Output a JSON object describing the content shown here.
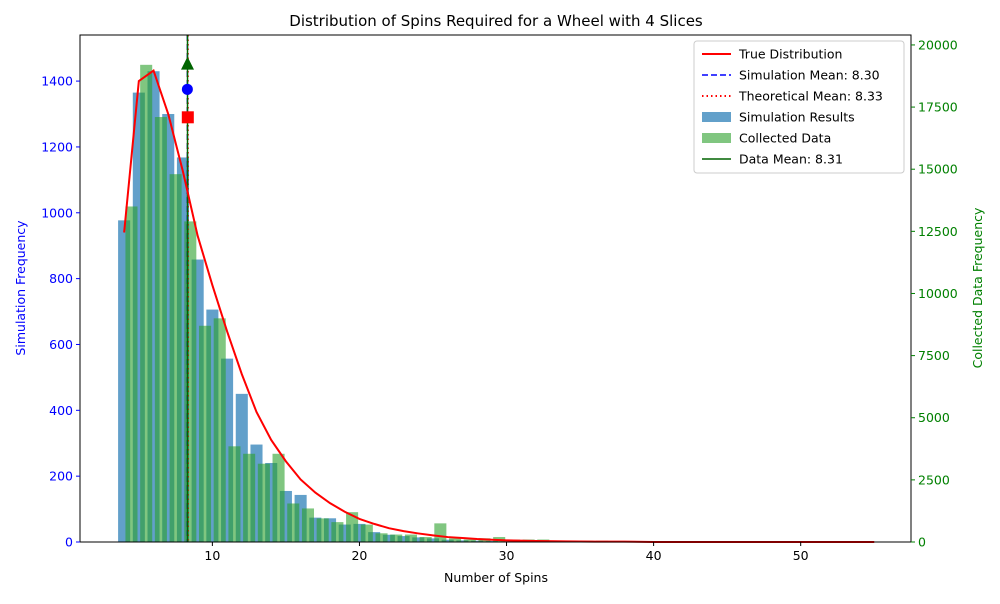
{
  "chart_data": {
    "type": "bar",
    "title": "Distribution of Spins Required for a Wheel with 4 Slices",
    "xlabel": "Number of Spins",
    "ylabel_left": "Simulation Frequency",
    "ylabel_right": "Collected Data Frequency",
    "xlim": [
      1,
      57.5
    ],
    "ylim_left": [
      0,
      1540
    ],
    "ylim_right": [
      0,
      20400
    ],
    "x_ticks": [
      10,
      20,
      30,
      40,
      50
    ],
    "y_ticks_left": [
      0,
      200,
      400,
      600,
      800,
      1000,
      1200,
      1400
    ],
    "y_ticks_right": [
      0,
      2500,
      5000,
      7500,
      10000,
      12500,
      15000,
      17500,
      20000
    ],
    "grid": false,
    "legend_position": "top-right",
    "colors": {
      "simulation": "#1f77b4",
      "collected": "#2ca02c",
      "true_dist": "#ff0000",
      "sim_mean": "#0000ff",
      "theo_mean": "#ff0000",
      "data_mean": "#006400",
      "left_axis": "#0000ff",
      "right_axis": "#008000"
    },
    "series": [
      {
        "name": "Simulation Results",
        "axis": "left",
        "x": [
          4,
          5,
          6,
          7,
          8,
          9,
          10,
          11,
          12,
          13,
          14,
          15,
          16,
          17,
          18,
          19,
          20,
          21,
          22,
          23,
          24,
          25,
          26,
          27,
          28,
          29,
          30,
          31,
          32,
          33
        ],
        "values": [
          977,
          1365,
          1430,
          1300,
          1168,
          858,
          706,
          557,
          450,
          296,
          240,
          155,
          143,
          74,
          72,
          53,
          55,
          30,
          22,
          18,
          14,
          11,
          7,
          5,
          4,
          3,
          2,
          2,
          1,
          1
        ]
      },
      {
        "name": "Collected Data",
        "axis": "right",
        "x": [
          4,
          5,
          6,
          7,
          8,
          9,
          10,
          11,
          12,
          13,
          14,
          15,
          16,
          17,
          18,
          19,
          20,
          21,
          22,
          23,
          24,
          25,
          26,
          27,
          28,
          29,
          30,
          31,
          32,
          33,
          34,
          35,
          36
        ],
        "values": [
          13500,
          19200,
          17100,
          14800,
          12900,
          8700,
          9000,
          3850,
          3550,
          3150,
          3550,
          1550,
          1350,
          950,
          800,
          1200,
          700,
          350,
          300,
          300,
          200,
          750,
          150,
          100,
          150,
          200,
          100,
          100,
          100,
          50,
          50,
          50,
          50
        ]
      },
      {
        "name": "True Distribution",
        "type": "line",
        "axis": "left",
        "x": [
          4,
          5,
          6,
          7,
          8,
          9,
          10,
          11,
          12,
          13,
          14,
          15,
          16,
          17,
          18,
          19,
          20,
          21,
          22,
          23,
          24,
          25,
          26,
          27,
          28,
          29,
          30,
          32,
          34,
          36,
          38,
          40,
          45,
          50,
          55
        ],
        "values": [
          940,
          1400,
          1432,
          1300,
          1125,
          930,
          780,
          640,
          510,
          395,
          310,
          245,
          190,
          150,
          118,
          92,
          70,
          55,
          42,
          33,
          26,
          20,
          15,
          12,
          9,
          7,
          5,
          3,
          2,
          1,
          1,
          0,
          0,
          0,
          0
        ]
      }
    ],
    "means": [
      {
        "name": "Simulation Mean: 8.30",
        "value": 8.3,
        "marker_y": 1375
      },
      {
        "name": "Theoretical Mean: 8.33",
        "value": 8.33,
        "marker_y": 1290
      },
      {
        "name": "Data Mean: 8.31",
        "value": 8.31,
        "marker_y": 19250
      }
    ],
    "legend": [
      "True Distribution",
      "Simulation Mean: 8.30",
      "Theoretical Mean: 8.33",
      "Simulation Results",
      "Collected Data",
      "Data Mean: 8.31"
    ]
  }
}
